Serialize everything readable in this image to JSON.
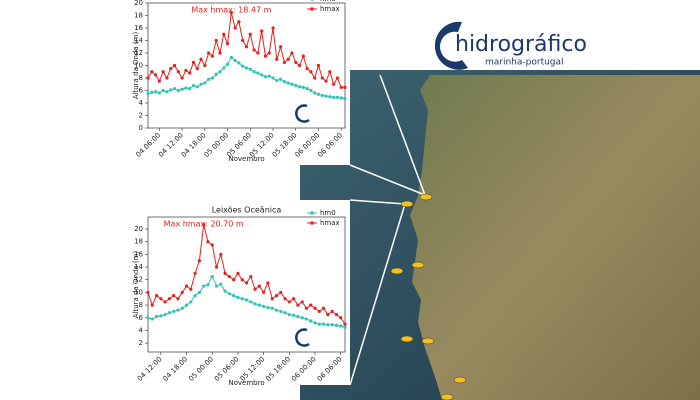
{
  "logo": {
    "name": "hidrográfico",
    "tagline": "marinha-portugal"
  },
  "chart_data": [
    {
      "type": "line",
      "annotation": "Max hmax: 18.47 m",
      "xlabel": "Novembro",
      "ylabel": "Altura da Onda (m)",
      "x": [
        "04 03:00",
        "04 04:00",
        "04 05:00",
        "04 06:00",
        "04 07:00",
        "04 08:00",
        "04 09:00",
        "04 10:00",
        "04 11:00",
        "04 12:00",
        "04 13:00",
        "04 14:00",
        "04 15:00",
        "04 16:00",
        "04 17:00",
        "04 18:00",
        "04 19:00",
        "04 20:00",
        "04 21:00",
        "04 22:00",
        "04 23:00",
        "05 00:00",
        "05 01:00",
        "05 02:00",
        "05 03:00",
        "05 04:00",
        "05 05:00",
        "05 06:00",
        "05 07:00",
        "05 08:00",
        "05 09:00",
        "05 10:00",
        "05 11:00",
        "05 12:00",
        "05 13:00",
        "05 14:00",
        "05 15:00",
        "05 16:00",
        "05 17:00",
        "05 18:00",
        "05 19:00",
        "05 20:00",
        "05 21:00",
        "05 22:00",
        "05 23:00",
        "06 00:00",
        "06 01:00",
        "06 02:00",
        "06 03:00",
        "06 04:00",
        "06 05:00",
        "06 06:00",
        "06 07:00"
      ],
      "xticks": [
        "04 06:00",
        "04 12:00",
        "04 18:00",
        "05 00:00",
        "05 06:00",
        "05 12:00",
        "05 18:00",
        "06 00:00",
        "06 06:00"
      ],
      "ylim": [
        0,
        20
      ],
      "yticks": [
        0,
        2,
        4,
        6,
        8,
        10,
        12,
        14,
        16,
        18,
        20
      ],
      "series": [
        {
          "name": "hm0",
          "color": "#2ec4b6",
          "values": [
            5.5,
            5.7,
            5.8,
            5.6,
            6,
            5.8,
            6.1,
            6.3,
            6,
            6.2,
            6.4,
            6.3,
            6.8,
            6.6,
            7,
            7.2,
            7.8,
            8,
            8.6,
            9,
            9.6,
            10.2,
            11.3,
            10.8,
            10.4,
            9.9,
            9.6,
            9.4,
            9,
            8.8,
            8.5,
            8.2,
            8.3,
            8.0,
            7.6,
            7.8,
            7.4,
            7.2,
            7.0,
            6.8,
            6.6,
            6.5,
            6.3,
            6.0,
            5.6,
            5.4,
            5.2,
            5.1,
            5.0,
            4.9,
            4.9,
            4.8,
            4.7
          ]
        },
        {
          "name": "hmax",
          "color": "#e8201f",
          "values": [
            8,
            9,
            8.5,
            7.5,
            9,
            8,
            9.5,
            10,
            9,
            8,
            9.2,
            8.8,
            10.5,
            9.5,
            11,
            10,
            12,
            11.5,
            14,
            12,
            15,
            13.5,
            18.47,
            16,
            17,
            14,
            13,
            15,
            12.5,
            12,
            15.5,
            11.5,
            12,
            16,
            11,
            13,
            10.5,
            11,
            12,
            10.5,
            10,
            11.5,
            9.5,
            9,
            8,
            10,
            8,
            7.5,
            9,
            7,
            8,
            6.5,
            6.5
          ]
        }
      ]
    },
    {
      "type": "line",
      "title": "Leixões Oceânica",
      "annotation": "Max hmax: 20.70 m",
      "xlabel": "Novembro",
      "ylabel": "Altura da Onda (m)",
      "x": [
        "04 09:00",
        "04 10:00",
        "04 11:00",
        "04 12:00",
        "04 13:00",
        "04 14:00",
        "04 15:00",
        "04 16:00",
        "04 17:00",
        "04 18:00",
        "04 19:00",
        "04 20:00",
        "04 21:00",
        "04 22:00",
        "04 23:00",
        "05 00:00",
        "05 01:00",
        "05 02:00",
        "05 03:00",
        "05 04:00",
        "05 05:00",
        "05 06:00",
        "05 07:00",
        "05 08:00",
        "05 09:00",
        "05 10:00",
        "05 11:00",
        "05 12:00",
        "05 13:00",
        "05 14:00",
        "05 15:00",
        "05 16:00",
        "05 17:00",
        "05 18:00",
        "05 19:00",
        "05 20:00",
        "05 21:00",
        "05 22:00",
        "05 23:00",
        "06 00:00",
        "06 01:00",
        "06 02:00",
        "06 03:00",
        "06 04:00",
        "06 05:00",
        "06 06:00",
        "06 07:00"
      ],
      "xticks": [
        "04 12:00",
        "04 18:00",
        "05 00:00",
        "05 06:00",
        "05 12:00",
        "05 18:00",
        "06 00:00",
        "06 06:00"
      ],
      "ylim": [
        0.6,
        21.9
      ],
      "yticks": [
        2,
        4,
        6,
        8,
        10,
        12,
        14,
        16,
        18,
        20
      ],
      "series": [
        {
          "name": "hm0",
          "color": "#2ec4b6",
          "values": [
            6,
            5.8,
            6.2,
            6.3,
            6.5,
            6.8,
            7,
            7.2,
            7.5,
            8,
            8.5,
            9.5,
            10,
            11,
            11.2,
            12.5,
            11,
            11.3,
            10.2,
            9.8,
            9.5,
            9.2,
            9,
            8.8,
            8.5,
            8.2,
            8,
            7.8,
            7.6,
            7.5,
            7.2,
            7,
            6.8,
            6.5,
            6.4,
            6.2,
            6,
            5.8,
            5.5,
            5.2,
            5,
            5,
            4.9,
            4.9,
            4.8,
            4.7,
            4.5
          ]
        },
        {
          "name": "hmax",
          "color": "#e8201f",
          "values": [
            10,
            8,
            9.5,
            9,
            8.5,
            9,
            9.5,
            9,
            10,
            11,
            10.5,
            13,
            15,
            20.7,
            18,
            17.5,
            14,
            16,
            13,
            12.5,
            12,
            13,
            12,
            11.5,
            12.5,
            10.5,
            11,
            10,
            11.5,
            9,
            9.5,
            10,
            9,
            8.5,
            9,
            8,
            8.5,
            7.5,
            8,
            7.5,
            7,
            7.5,
            6.5,
            7,
            6.5,
            6,
            5
          ]
        }
      ]
    }
  ]
}
